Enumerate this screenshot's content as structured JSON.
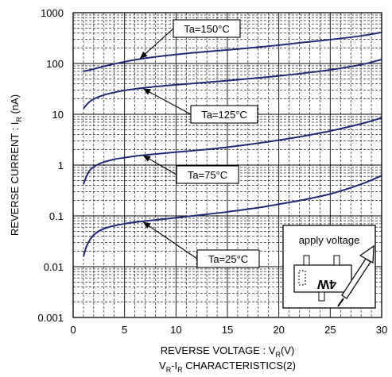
{
  "chart_data": {
    "type": "line",
    "title": "",
    "caption_prefix": "V",
    "caption_sub1": "R",
    "caption_mid": "-I",
    "caption_sub2": "R",
    "caption_suffix": " CHARACTERISTICS(2)",
    "xlabel_prefix": "REVERSE VOLTAGE : V",
    "xlabel_sub": "R",
    "xlabel_suffix": "(V)",
    "ylabel_prefix": "REVERSE CURRENT : I",
    "ylabel_sub": "R",
    "ylabel_suffix": " (nA)",
    "xlim": [
      0,
      30
    ],
    "ylim": [
      0.001,
      1000
    ],
    "y_scale": "log",
    "grid": true,
    "x_ticks": [
      0,
      5,
      10,
      15,
      20,
      25,
      30
    ],
    "x_tick_labels": [
      "0",
      "5",
      "10",
      "15",
      "20",
      "25",
      "30"
    ],
    "y_ticks": [
      0.001,
      0.01,
      0.1,
      1,
      10,
      100,
      1000
    ],
    "y_tick_labels": [
      "0.001",
      "0.01",
      "0.1",
      "1",
      "10",
      "100",
      "1000"
    ],
    "line_color": "#1f2a7a",
    "series": [
      {
        "name": "Ta=150°C",
        "x": [
          1,
          2,
          3,
          4,
          5,
          6,
          8,
          10,
          12,
          15,
          18,
          20,
          22,
          25,
          28,
          30
        ],
        "y": [
          70,
          78,
          88,
          98,
          108,
          118,
          135,
          150,
          165,
          185,
          210,
          230,
          255,
          295,
          350,
          410
        ]
      },
      {
        "name": "Ta=125°C",
        "x": [
          1,
          1.5,
          2,
          3,
          4,
          5,
          6,
          8,
          10,
          12,
          15,
          18,
          20,
          22,
          25,
          28,
          30
        ],
        "y": [
          13,
          17,
          20,
          24,
          27,
          29.5,
          31.5,
          35,
          38,
          41,
          46,
          52,
          57,
          63,
          75,
          95,
          120
        ]
      },
      {
        "name": "Ta=75°C",
        "x": [
          1,
          1.3,
          1.6,
          2,
          2.5,
          3,
          4,
          5,
          6,
          8,
          10,
          12,
          15,
          18,
          20,
          22,
          25,
          28,
          30
        ],
        "y": [
          0.42,
          0.6,
          0.78,
          0.92,
          1.05,
          1.15,
          1.3,
          1.4,
          1.5,
          1.65,
          1.8,
          1.95,
          2.25,
          2.7,
          3.1,
          3.6,
          4.7,
          6.5,
          8.5
        ]
      },
      {
        "name": "Ta=25°C",
        "x": [
          1,
          1.3,
          1.6,
          2,
          2.5,
          3,
          4,
          5,
          6,
          8,
          10,
          12,
          15,
          18,
          20,
          22,
          25,
          28,
          30
        ],
        "y": [
          0.016,
          0.025,
          0.033,
          0.042,
          0.05,
          0.056,
          0.064,
          0.07,
          0.075,
          0.083,
          0.092,
          0.102,
          0.12,
          0.145,
          0.17,
          0.2,
          0.27,
          0.42,
          0.62
        ]
      }
    ],
    "annotations": [
      {
        "label": "Ta=150°C",
        "point_x": 6.5,
        "point_y": 125
      },
      {
        "label": "Ta=125°C",
        "point_x": 6.8,
        "point_y": 32
      },
      {
        "label": "Ta=75°C",
        "point_x": 6.8,
        "point_y": 1.55
      },
      {
        "label": "Ta=25°C",
        "point_x": 6.8,
        "point_y": 0.076
      }
    ],
    "inset": {
      "label": "apply voltage",
      "part_marking": "4W"
    }
  }
}
